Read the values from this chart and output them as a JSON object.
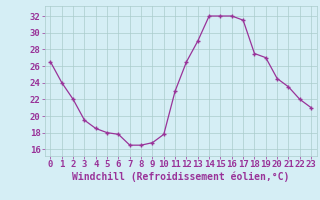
{
  "x": [
    0,
    1,
    2,
    3,
    4,
    5,
    6,
    7,
    8,
    9,
    10,
    11,
    12,
    13,
    14,
    15,
    16,
    17,
    18,
    19,
    20,
    21,
    22,
    23
  ],
  "y": [
    26.5,
    24.0,
    22.0,
    19.5,
    18.5,
    18.0,
    17.8,
    16.5,
    16.5,
    16.8,
    17.8,
    23.0,
    26.5,
    29.0,
    32.0,
    32.0,
    32.0,
    31.5,
    27.5,
    27.0,
    24.5,
    23.5,
    22.0,
    21.0
  ],
  "line_color": "#993399",
  "marker": "+",
  "marker_color": "#993399",
  "bg_color": "#d5eef5",
  "grid_color": "#aacccc",
  "xlabel": "Windchill (Refroidissement éolien,°C)",
  "xlabel_color": "#993399",
  "tick_color": "#993399",
  "ylabel_ticks": [
    16,
    18,
    20,
    22,
    24,
    26,
    28,
    30,
    32
  ],
  "ylim": [
    15.2,
    33.2
  ],
  "xlim": [
    -0.5,
    23.5
  ],
  "font_size": 6.5,
  "xlabel_font_size": 7,
  "linewidth": 0.9,
  "markersize": 3.5
}
